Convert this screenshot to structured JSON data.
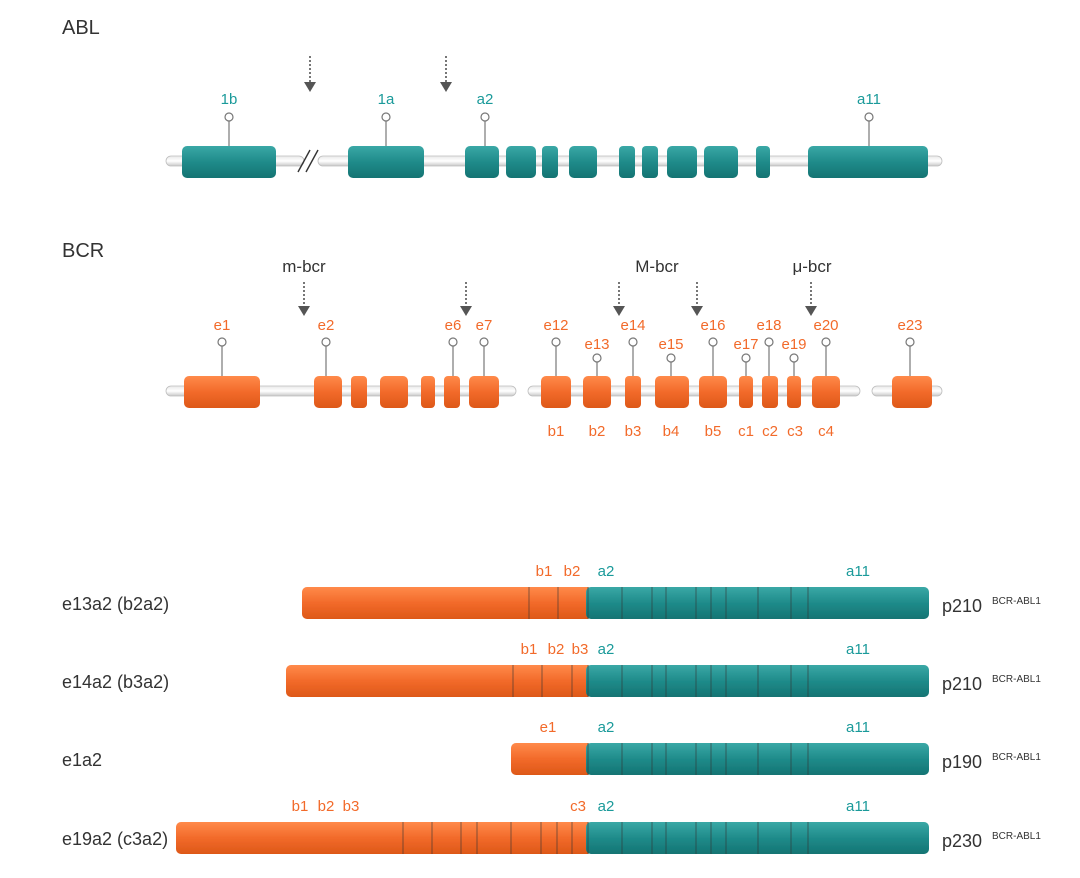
{
  "colors": {
    "abl": "#1c8a8a",
    "abl_label": "#1a9a9a",
    "bcr": "#f26a2a",
    "bcr_label": "#f26a2a",
    "text": "#333333"
  },
  "abl": {
    "title": "ABL",
    "exon_labels": {
      "1b": "1b",
      "1a": "1a",
      "a2": "a2",
      "a11": "a11"
    }
  },
  "bcr": {
    "title": "BCR",
    "regions": {
      "minor": "m-bcr",
      "major": "M-bcr",
      "mu": "μ-bcr"
    },
    "exon_labels": [
      "e1",
      "e2",
      "e6",
      "e7",
      "e12",
      "e13",
      "e14",
      "e15",
      "e16",
      "e17",
      "e18",
      "e19",
      "e20",
      "e23"
    ],
    "b_labels": [
      "b1",
      "b2",
      "b3",
      "b4",
      "b5",
      "c1",
      "c2",
      "c3",
      "c4"
    ]
  },
  "fusions": [
    {
      "name": "e13a2 (b2a2)",
      "protein": "p210",
      "superscript": "BCR-ABL1",
      "bcr_labels": [
        "b1",
        "b2"
      ],
      "abl_labels": [
        "a2",
        "a11"
      ]
    },
    {
      "name": "e14a2 (b3a2)",
      "protein": "p210",
      "superscript": "BCR-ABL1",
      "bcr_labels": [
        "b1",
        "b2",
        "b3"
      ],
      "abl_labels": [
        "a2",
        "a11"
      ]
    },
    {
      "name": "e1a2",
      "protein": "p190",
      "superscript": "BCR-ABL1",
      "bcr_labels": [
        "e1"
      ],
      "abl_labels": [
        "a2",
        "a11"
      ]
    },
    {
      "name": "e19a2 (c3a2)",
      "protein": "p230",
      "superscript": "BCR-ABL1",
      "bcr_labels": [
        "b1",
        "b2",
        "b3",
        "c3"
      ],
      "abl_labels": [
        "a2",
        "a11"
      ]
    }
  ]
}
